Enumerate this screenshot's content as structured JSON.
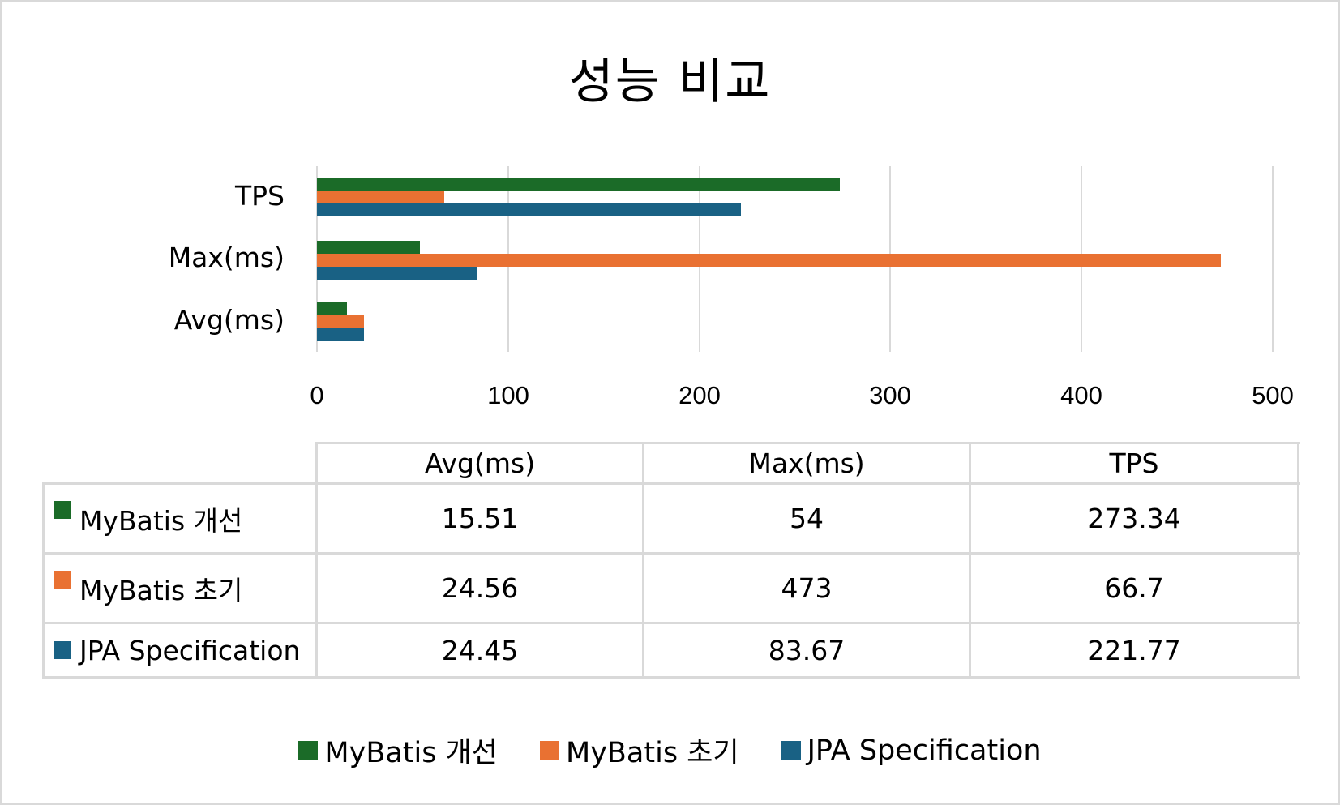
{
  "chart_data": {
    "type": "bar",
    "orientation": "horizontal",
    "title": "성능 비교",
    "xlabel": "",
    "ylabel": "",
    "categories": [
      "Avg(ms)",
      "Max(ms)",
      "TPS"
    ],
    "series": [
      {
        "name": "MyBatis 개선",
        "color": "#1b6b28",
        "values": [
          15.51,
          54,
          273.34
        ]
      },
      {
        "name": "MyBatis 초기",
        "color": "#e97132",
        "values": [
          24.56,
          473,
          66.7
        ]
      },
      {
        "name": "JPA Specification",
        "color": "#196184",
        "values": [
          24.45,
          83.67,
          221.77
        ]
      }
    ],
    "xlim": [
      0,
      500
    ],
    "x_ticks": [
      0,
      100,
      200,
      300,
      400,
      500
    ],
    "grid": {
      "vertical": true,
      "horizontal": false
    },
    "legend_position": "bottom",
    "data_table": true
  },
  "title": "성능 비교",
  "axis": {
    "category_labels_top_to_bottom": [
      "TPS",
      "Max(ms)",
      "Avg(ms)"
    ],
    "tick_labels": [
      "0",
      "100",
      "200",
      "300",
      "400",
      "500"
    ]
  },
  "data_table": {
    "headers": [
      "",
      "Avg(ms)",
      "Max(ms)",
      "TPS"
    ],
    "rows": [
      {
        "series": "MyBatis 개선",
        "color": "#1b6b28",
        "cells": [
          "15.51",
          "54",
          "273.34"
        ]
      },
      {
        "series": "MyBatis 초기",
        "color": "#e97132",
        "cells": [
          "24.56",
          "473",
          "66.7"
        ]
      },
      {
        "series": "JPA Specification",
        "color": "#196184",
        "cells": [
          "24.45",
          "83.67",
          "221.77"
        ]
      }
    ]
  },
  "legend": {
    "items": [
      {
        "label": "MyBatis 개선",
        "color": "#1b6b28"
      },
      {
        "label": "MyBatis 초기",
        "color": "#e97132"
      },
      {
        "label": "JPA Specification",
        "color": "#196184"
      }
    ]
  },
  "colors": {
    "grid": "#d9d9d9",
    "border": "#d9d9d9",
    "text": "#000000",
    "background": "#ffffff"
  }
}
